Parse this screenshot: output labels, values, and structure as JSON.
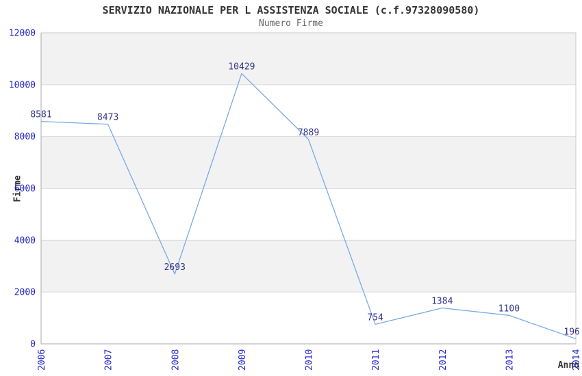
{
  "chart_data": {
    "type": "line",
    "title": "SERVIZIO NAZIONALE PER L ASSISTENZA SOCIALE (c.f.97328090580)",
    "subtitle": "Numero Firme",
    "xlabel": "Anno",
    "ylabel": "Firme",
    "categories": [
      "2006",
      "2007",
      "2008",
      "2009",
      "2010",
      "2011",
      "2012",
      "2013",
      "2014"
    ],
    "series": [
      {
        "name": "Numero Firme",
        "values": [
          8581,
          8473,
          2693,
          10429,
          7889,
          754,
          1384,
          1100,
          196
        ]
      }
    ],
    "ylim": [
      0,
      12000
    ],
    "yticks": [
      0,
      2000,
      4000,
      6000,
      8000,
      10000,
      12000
    ],
    "show_value_labels": true,
    "legend": "none",
    "grid": "horizontal-bands",
    "x_tick_rotation": -90,
    "colors": {
      "line": "#79a9e6",
      "value_label": "#333388",
      "tick_label": "#2222cc",
      "band_alt": "#f2f2f2",
      "band": "#ffffff",
      "grid": "#d9d9d9",
      "border": "#c8c8c8",
      "axis": "#aaaaaa",
      "title": "#333333",
      "subtitle": "#666666",
      "axis_title": "#333333"
    }
  }
}
